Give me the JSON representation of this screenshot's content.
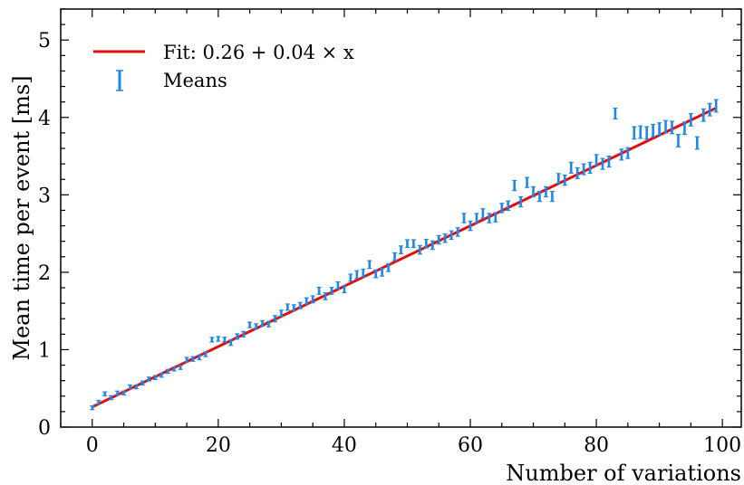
{
  "chart_data": {
    "type": "scatter",
    "xlabel": "Number of variations",
    "ylabel": "Mean time per event [ms]",
    "xlim": [
      -5,
      103
    ],
    "ylim": [
      0,
      5.4
    ],
    "x_ticks": [
      0,
      20,
      40,
      60,
      80,
      100
    ],
    "y_ticks": [
      0,
      1,
      2,
      3,
      4,
      5
    ],
    "grid": false,
    "legend_position": "top-left",
    "colors": {
      "means": "#1f87e6",
      "fit": "#e01010"
    },
    "fit": {
      "label": "Fit: 0.26 + 0.04 × x",
      "intercept": 0.26,
      "slope": 0.039
    },
    "series": [
      {
        "name": "Means",
        "x": [
          0,
          1,
          2,
          3,
          4,
          5,
          6,
          7,
          8,
          9,
          10,
          11,
          12,
          13,
          14,
          15,
          16,
          17,
          18,
          19,
          20,
          21,
          22,
          23,
          24,
          25,
          26,
          27,
          28,
          29,
          30,
          31,
          32,
          33,
          34,
          35,
          36,
          37,
          38,
          39,
          40,
          41,
          42,
          43,
          44,
          45,
          46,
          47,
          48,
          49,
          50,
          51,
          52,
          53,
          54,
          55,
          56,
          57,
          58,
          59,
          60,
          61,
          62,
          63,
          64,
          65,
          66,
          67,
          68,
          69,
          70,
          71,
          72,
          73,
          74,
          75,
          76,
          77,
          78,
          79,
          80,
          81,
          82,
          83,
          84,
          85,
          86,
          87,
          88,
          89,
          90,
          91,
          92,
          93,
          94,
          95,
          96,
          97,
          98,
          99
        ],
        "y": [
          0.25,
          0.32,
          0.43,
          0.38,
          0.44,
          0.44,
          0.52,
          0.52,
          0.57,
          0.62,
          0.64,
          0.67,
          0.72,
          0.75,
          0.77,
          0.87,
          0.88,
          0.9,
          0.94,
          1.13,
          1.14,
          1.13,
          1.09,
          1.17,
          1.2,
          1.32,
          1.3,
          1.34,
          1.33,
          1.4,
          1.47,
          1.55,
          1.54,
          1.57,
          1.63,
          1.65,
          1.76,
          1.69,
          1.76,
          1.83,
          1.78,
          1.93,
          1.97,
          1.99,
          2.1,
          1.98,
          2.0,
          2.06,
          2.2,
          2.29,
          2.37,
          2.37,
          2.29,
          2.37,
          2.35,
          2.42,
          2.44,
          2.48,
          2.52,
          2.7,
          2.6,
          2.7,
          2.76,
          2.7,
          2.71,
          2.83,
          2.86,
          3.12,
          2.91,
          3.16,
          3.04,
          2.98,
          3.04,
          2.98,
          3.21,
          3.19,
          3.35,
          3.28,
          3.33,
          3.35,
          3.45,
          3.4,
          3.43,
          4.05,
          3.52,
          3.54,
          3.8,
          3.81,
          3.8,
          3.83,
          3.85,
          3.88,
          3.87,
          3.7,
          3.86,
          3.97,
          3.67,
          4.03,
          4.1,
          4.15
        ],
        "err": [
          0.025,
          0.025,
          0.025,
          0.025,
          0.025,
          0.025,
          0.025,
          0.025,
          0.025,
          0.025,
          0.025,
          0.025,
          0.025,
          0.025,
          0.025,
          0.03,
          0.03,
          0.03,
          0.03,
          0.03,
          0.03,
          0.03,
          0.035,
          0.035,
          0.035,
          0.035,
          0.035,
          0.035,
          0.035,
          0.04,
          0.04,
          0.04,
          0.04,
          0.04,
          0.04,
          0.045,
          0.045,
          0.045,
          0.045,
          0.045,
          0.045,
          0.045,
          0.05,
          0.05,
          0.05,
          0.05,
          0.05,
          0.05,
          0.05,
          0.05,
          0.05,
          0.05,
          0.055,
          0.055,
          0.055,
          0.055,
          0.055,
          0.055,
          0.055,
          0.06,
          0.06,
          0.06,
          0.06,
          0.06,
          0.06,
          0.06,
          0.06,
          0.065,
          0.065,
          0.065,
          0.065,
          0.065,
          0.065,
          0.065,
          0.065,
          0.065,
          0.07,
          0.07,
          0.07,
          0.07,
          0.07,
          0.07,
          0.07,
          0.07,
          0.07,
          0.07,
          0.08,
          0.08,
          0.08,
          0.08,
          0.08,
          0.08,
          0.08,
          0.08,
          0.08,
          0.08,
          0.08,
          0.08,
          0.08,
          0.08
        ]
      }
    ]
  }
}
